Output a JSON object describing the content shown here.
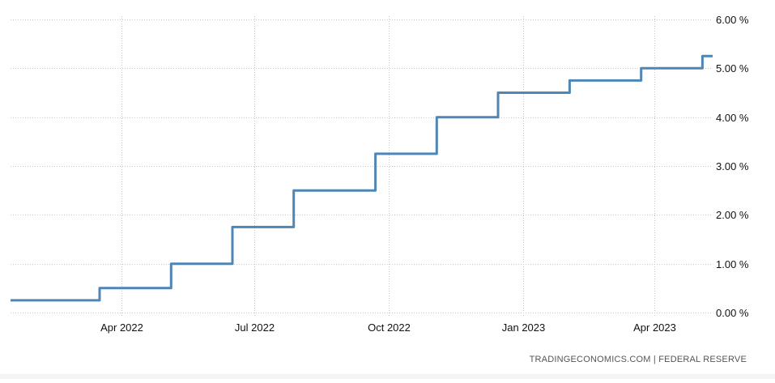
{
  "chart_data": {
    "type": "line",
    "step": true,
    "title": "",
    "xlabel": "",
    "ylabel": "",
    "x_tick_labels": [
      "Apr 2022",
      "Jul 2022",
      "Oct 2022",
      "Jan 2023",
      "Apr 2023"
    ],
    "x_ticks": [
      "2022-04-01",
      "2022-07-01",
      "2022-10-01",
      "2023-01-01",
      "2023-04-01"
    ],
    "y_tick_labels": [
      "6.00 %",
      "5.00 %",
      "4.00 %",
      "3.00 %",
      "2.00 %",
      "1.00 %",
      "0.00 %"
    ],
    "y_ticks": [
      6,
      5,
      4,
      3,
      2,
      1,
      0
    ],
    "ylim": [
      0,
      6
    ],
    "xlim": [
      "2022-01-15",
      "2023-05-11"
    ],
    "grid": true,
    "y_axis_position": "right",
    "series": [
      {
        "color": "#4f86b5",
        "x": [
          "2022-01-15",
          "2022-03-17",
          "2022-05-05",
          "2022-06-16",
          "2022-07-28",
          "2022-09-22",
          "2022-11-03",
          "2022-12-15",
          "2023-02-02",
          "2023-03-23",
          "2023-05-04",
          "2023-05-11"
        ],
        "y": [
          0.25,
          0.5,
          1.0,
          1.75,
          2.5,
          3.25,
          4.0,
          4.5,
          4.75,
          5.0,
          5.25,
          5.25
        ]
      }
    ]
  },
  "source": "TRADINGECONOMICS.COM  |  FEDERAL RESERVE",
  "colors": {
    "series": "#4f86b5",
    "grid": "#c8c8c8",
    "text": "#111111",
    "source_text": "#555555"
  }
}
